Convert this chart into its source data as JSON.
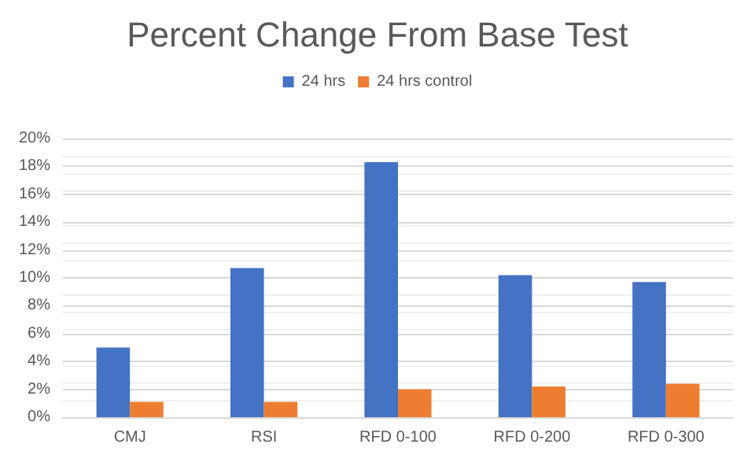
{
  "chart_data": {
    "type": "bar",
    "title": "Percent Change From Base Test",
    "categories": [
      "CMJ",
      "RSI",
      "RFD 0-100",
      "RFD 0-200",
      "RFD 0-300"
    ],
    "series": [
      {
        "name": "24 hrs",
        "color": "#4472c4",
        "values": [
          5.0,
          10.7,
          18.3,
          10.2,
          9.7
        ]
      },
      {
        "name": "24 hrs control",
        "color": "#ed7d31",
        "values": [
          1.1,
          1.1,
          2.0,
          2.2,
          2.4
        ]
      }
    ],
    "ylim": [
      0,
      20
    ],
    "yticks": [
      {
        "value": 0,
        "label": "0%"
      },
      {
        "value": 2,
        "label": "2%"
      },
      {
        "value": 4,
        "label": "4%"
      },
      {
        "value": 6,
        "label": "6%"
      },
      {
        "value": 8,
        "label": "8%"
      },
      {
        "value": 10,
        "label": "10%"
      },
      {
        "value": 12,
        "label": "12%"
      },
      {
        "value": 14,
        "label": "14%"
      },
      {
        "value": 16,
        "label": "16%"
      },
      {
        "value": 18,
        "label": "18%"
      },
      {
        "value": 20,
        "label": "20%"
      }
    ],
    "grid": true,
    "legend": "top"
  }
}
